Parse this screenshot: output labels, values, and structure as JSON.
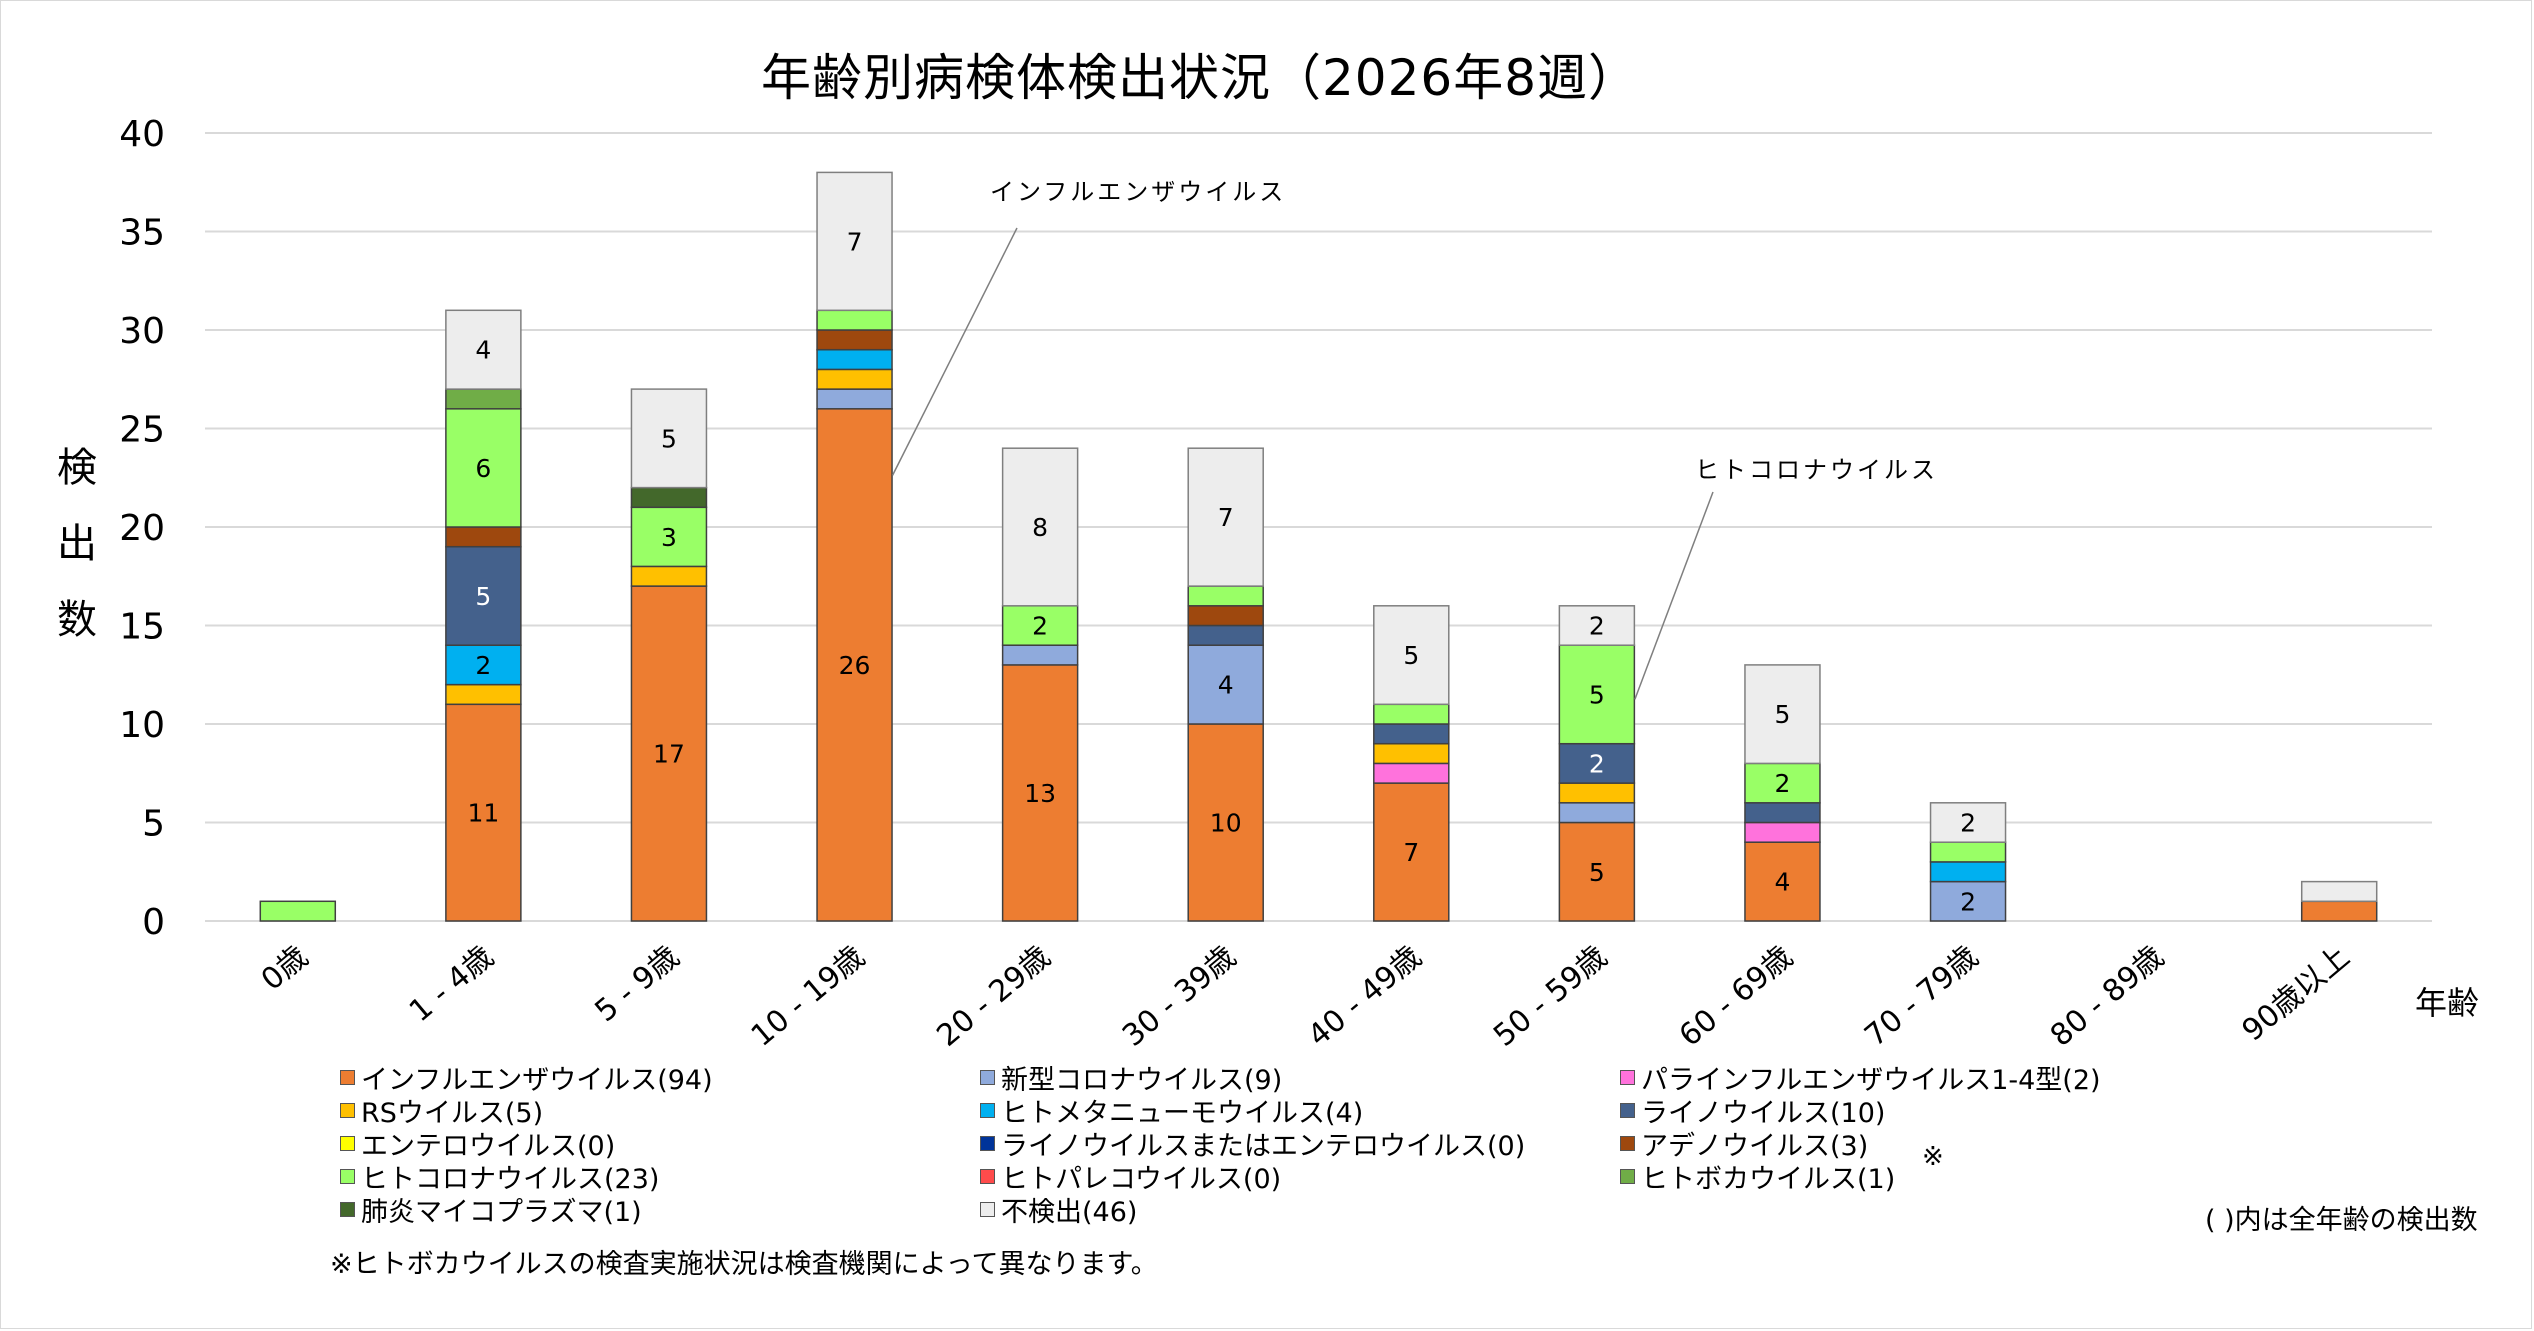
{
  "chart_data": {
    "type": "bar",
    "stacked": true,
    "title": "年齢別病検体検出状況（2026年8週）",
    "xlabel": "年齢",
    "ylabel": "検出数",
    "ylim": [
      0,
      40
    ],
    "yticks": [
      0,
      5,
      10,
      15,
      20,
      25,
      30,
      35,
      40
    ],
    "grid": true,
    "legend_position": "bottom",
    "categories": [
      "0歳",
      "1 - 4歳",
      "5 - 9歳",
      "10 - 19歳",
      "20 - 29歳",
      "30 - 39歳",
      "40 - 49歳",
      "50 - 59歳",
      "60 - 69歳",
      "70 - 79歳",
      "80 - 89歳",
      "90歳以上"
    ],
    "series": [
      {
        "name": "インフルエンザウイルス",
        "total": 94,
        "color": "#ED7D31",
        "label_color": "#000000",
        "values": [
          0,
          11,
          17,
          26,
          13,
          10,
          7,
          5,
          4,
          0,
          0,
          1
        ],
        "show_labels_min": 2
      },
      {
        "name": "新型コロナウイルス",
        "total": 9,
        "color": "#8FAADC",
        "label_color": "#000000",
        "values": [
          0,
          0,
          0,
          1,
          1,
          4,
          0,
          1,
          0,
          2,
          0,
          0
        ],
        "show_labels_min": 2
      },
      {
        "name": "パラインフルエンザウイルス1-4型",
        "total": 2,
        "color": "#FF72DC",
        "label_color": "#000000",
        "values": [
          0,
          0,
          0,
          0,
          0,
          0,
          1,
          0,
          1,
          0,
          0,
          0
        ],
        "show_labels_min": 2
      },
      {
        "name": "RSウイルス",
        "total": 5,
        "color": "#FFC000",
        "label_color": "#000000",
        "values": [
          0,
          1,
          1,
          1,
          0,
          0,
          1,
          1,
          0,
          0,
          0,
          0
        ],
        "show_labels_min": 2
      },
      {
        "name": "ヒトメタニューモウイルス",
        "total": 4,
        "color": "#00B0F0",
        "label_color": "#000000",
        "values": [
          0,
          2,
          0,
          1,
          0,
          0,
          0,
          0,
          0,
          1,
          0,
          0
        ],
        "show_labels_min": 2
      },
      {
        "name": "ライノウイルス",
        "total": 10,
        "color": "#44618C",
        "label_color": "#FFFFFF",
        "values": [
          0,
          5,
          0,
          0,
          0,
          1,
          1,
          2,
          1,
          0,
          0,
          0
        ],
        "show_labels_min": 2
      },
      {
        "name": "エンテロウイルス",
        "total": 0,
        "color": "#FFFF00",
        "label_color": "#000000",
        "values": [
          0,
          0,
          0,
          0,
          0,
          0,
          0,
          0,
          0,
          0,
          0,
          0
        ],
        "show_labels_min": 2
      },
      {
        "name": "ライノウイルスまたはエンテロウイルス",
        "total": 0,
        "color": "#003399",
        "label_color": "#FFFFFF",
        "values": [
          0,
          0,
          0,
          0,
          0,
          0,
          0,
          0,
          0,
          0,
          0,
          0
        ],
        "show_labels_min": 2
      },
      {
        "name": "アデノウイルス",
        "total": 3,
        "color": "#9E480E",
        "label_color": "#FFFFFF",
        "values": [
          0,
          1,
          0,
          1,
          0,
          1,
          0,
          0,
          0,
          0,
          0,
          0
        ],
        "show_labels_min": 2
      },
      {
        "name": "ヒトコロナウイルス",
        "total": 23,
        "color": "#99FF66",
        "label_color": "#000000",
        "values": [
          1,
          6,
          3,
          1,
          2,
          1,
          1,
          5,
          2,
          1,
          0,
          0
        ],
        "show_labels_min": 2
      },
      {
        "name": "ヒトパレコウイルス",
        "total": 0,
        "color": "#FF4B4B",
        "label_color": "#000000",
        "values": [
          0,
          0,
          0,
          0,
          0,
          0,
          0,
          0,
          0,
          0,
          0,
          0
        ],
        "show_labels_min": 2
      },
      {
        "name": "ヒトボカウイルス",
        "total": 1,
        "color": "#70AD47",
        "label_color": "#000000",
        "values": [
          0,
          1,
          0,
          0,
          0,
          0,
          0,
          0,
          0,
          0,
          0,
          0
        ],
        "show_labels_min": 2
      },
      {
        "name": "肺炎マイコプラズマ",
        "total": 1,
        "color": "#43682B",
        "label_color": "#FFFFFF",
        "values": [
          0,
          0,
          1,
          0,
          0,
          0,
          0,
          0,
          0,
          0,
          0,
          0
        ],
        "show_labels_min": 2
      },
      {
        "name": "不検出",
        "total": 46,
        "color": "#EDEDED",
        "label_color": "#000000",
        "values": [
          0,
          4,
          5,
          7,
          8,
          7,
          5,
          2,
          5,
          2,
          0,
          1
        ],
        "show_labels_min": 2
      }
    ],
    "annotations": [
      {
        "text": "インフルエンザウイルス",
        "category": "10 - 19歳",
        "series": "インフルエンザウイルス"
      },
      {
        "text": "ヒトコロナウイルス",
        "category": "50 - 59歳",
        "series": "ヒトコロナウイルス"
      }
    ]
  },
  "legend": {
    "items": [
      {
        "label": "インフルエンザウイルス(94)",
        "color": "#ED7D31"
      },
      {
        "label": "新型コロナウイルス(9)",
        "color": "#8FAADC"
      },
      {
        "label": "パラインフルエンザウイルス1-4型(2)",
        "color": "#FF72DC"
      },
      {
        "label": "RSウイルス(5)",
        "color": "#FFC000"
      },
      {
        "label": "ヒトメタニューモウイルス(4)",
        "color": "#00B0F0"
      },
      {
        "label": "ライノウイルス(10)",
        "color": "#44618C"
      },
      {
        "label": "エンテロウイルス(0)",
        "color": "#FFFF00"
      },
      {
        "label": "ライノウイルスまたはエンテロウイルス(0)",
        "color": "#003399"
      },
      {
        "label": "アデノウイルス(3)",
        "color": "#9E480E"
      },
      {
        "label": "ヒトコロナウイルス(23)",
        "color": "#99FF66"
      },
      {
        "label": "ヒトパレコウイルス(0)",
        "color": "#FF4B4B"
      },
      {
        "label": "ヒトボカウイルス(1)",
        "color": "#70AD47"
      },
      {
        "label": "肺炎マイコプラズマ(1)",
        "color": "#43682B"
      },
      {
        "label": "不検出(46)",
        "color": "#EDEDED"
      }
    ],
    "asterisk": "※",
    "note": "( )内は全年齢の検出数"
  },
  "footnote": "※ヒトボカウイルスの検査実施状況は検査機関によって異なります。"
}
